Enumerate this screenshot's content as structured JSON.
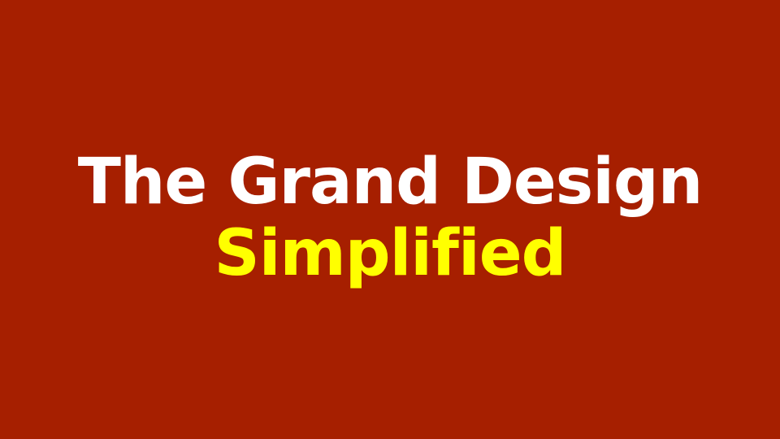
{
  "slide": {
    "title": "The Grand Design",
    "subtitle": "Simplified"
  },
  "colors": {
    "background": "#a61f00",
    "title": "#ffffff",
    "subtitle": "#ffff00"
  }
}
